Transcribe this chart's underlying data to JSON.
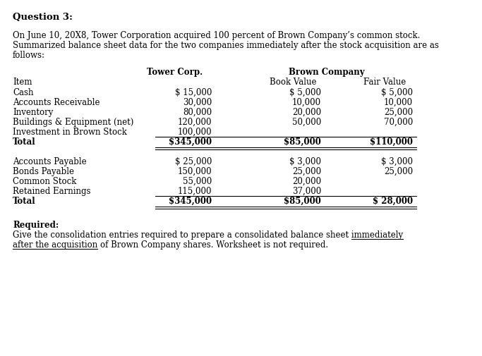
{
  "title": "Question 3:",
  "paragraph_lines": [
    "On June 10, 20X8, Tower Corporation acquired 100 percent of Brown Company’s common stock.",
    "Summarized balance sheet data for the two companies immediately after the stock acquisition are as",
    "follows:"
  ],
  "assets": [
    [
      "Cash",
      "$ 15,000",
      "$ 5,000",
      "$ 5,000"
    ],
    [
      "Accounts Receivable",
      "30,000",
      "10,000",
      "10,000"
    ],
    [
      "Inventory",
      "80,000",
      "20,000",
      "25,000"
    ],
    [
      "Buildings & Equipment (net)",
      "120,000",
      "50,000",
      "70,000"
    ],
    [
      "Investment in Brown Stock",
      "100,000",
      "",
      ""
    ]
  ],
  "assets_total": [
    "Total",
    "$345,000",
    "$85,000",
    "$110,000"
  ],
  "liabilities": [
    [
      "Accounts Payable",
      "$ 25,000",
      "$ 3,000",
      "$ 3,000"
    ],
    [
      "Bonds Payable",
      "150,000",
      "25,000",
      "25,000"
    ],
    [
      "Common Stock",
      "55,000",
      "20,000",
      ""
    ],
    [
      "Retained Earnings",
      "115,000",
      "37,000",
      ""
    ]
  ],
  "liabilities_total": [
    "Total",
    "$345,000",
    "$85,000",
    "$ 28,000"
  ],
  "required_title": "Required:",
  "req_line1_plain": "Give the consolidation entries required to prepare a consolidated balance sheet ",
  "req_line1_underline": "immediately",
  "req_line2_underline": "after the acquisition",
  "req_line2_plain": " of Brown Company shares. Worksheet is not required.",
  "bg_color": "#ffffff",
  "text_color": "#000000",
  "font_size": 8.5,
  "bold_font_size": 8.5,
  "title_font_size": 9.5
}
